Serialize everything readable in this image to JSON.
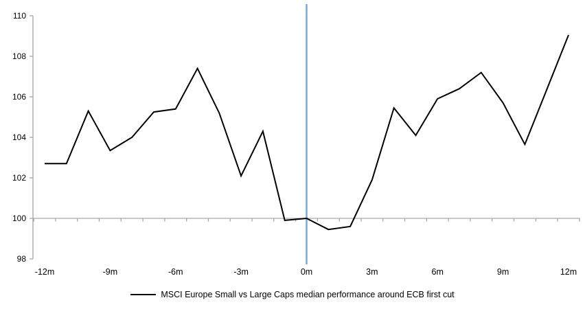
{
  "chart": {
    "colors": {
      "line": "#000000",
      "axis": "#A6A6A6",
      "event_line": "#74A9D8",
      "text": "#000000",
      "background": "#FFFFFF"
    }
  },
  "chart_data": {
    "type": "line",
    "x_unit": "months relative to ECB first cut",
    "x": [
      -12,
      -11,
      -10,
      -9,
      -8,
      -7,
      -6,
      -5,
      -4,
      -3,
      -2,
      -1,
      0,
      1,
      2,
      3,
      4,
      5,
      6,
      7,
      8,
      9,
      10,
      11,
      12
    ],
    "values": [
      102.7,
      102.7,
      105.3,
      103.35,
      104.0,
      105.25,
      105.4,
      107.4,
      105.2,
      102.1,
      104.3,
      99.9,
      100.0,
      99.45,
      99.6,
      101.9,
      105.45,
      104.1,
      105.9,
      106.4,
      107.2,
      105.7,
      103.65,
      106.35,
      109.05
    ],
    "x_tick_labels": [
      "-12m",
      "-9m",
      "-6m",
      "-3m",
      "0m",
      "3m",
      "6m",
      "9m",
      "12m"
    ],
    "x_tick_positions": [
      -12,
      -9,
      -6,
      -3,
      0,
      3,
      6,
      9,
      12
    ],
    "y_ticks": [
      98,
      100,
      102,
      104,
      106,
      108,
      110
    ],
    "ylim": [
      98,
      110
    ],
    "xlim": [
      -12.5,
      12.5
    ],
    "grid": "horizontal baseline at 100 only",
    "legend_position": "bottom-center",
    "legend": [
      "MSCI Europe Small vs Large Caps median performance around ECB first cut"
    ],
    "annotations": [
      {
        "type": "vline",
        "x": 0,
        "meaning": "ECB first cut"
      }
    ]
  }
}
